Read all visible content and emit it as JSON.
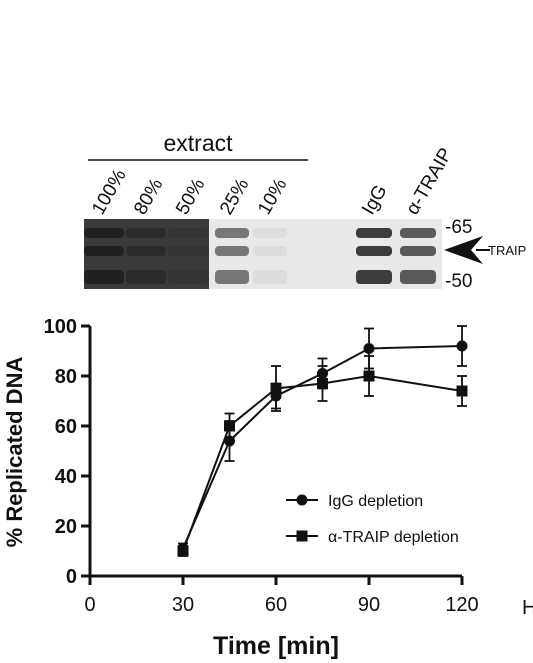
{
  "panel_label": "",
  "blot": {
    "extract_label": "extract",
    "lanes": [
      "100%",
      "80%",
      "50%",
      "25%",
      "10%",
      "IgG",
      "α-TRAIP"
    ],
    "marker_top": "-65",
    "marker_bottom": "-50",
    "band_label": "TRAIP",
    "lane_intensity": [
      0.95,
      0.9,
      0.85,
      0.6,
      0.08,
      0.9,
      0.75
    ]
  },
  "chart_data": {
    "type": "line",
    "title": "",
    "xlabel": "Time [min]",
    "ylabel": "% Replicated DNA",
    "xlim": [
      0,
      120
    ],
    "ylim": [
      0,
      100
    ],
    "xticks": [
      0,
      30,
      60,
      90,
      120
    ],
    "yticks": [
      0,
      20,
      40,
      60,
      80,
      100
    ],
    "grid": false,
    "legend_position": "bottom-right",
    "series": [
      {
        "name": "IgG depletion",
        "marker": "circle",
        "x": [
          30,
          45,
          60,
          75,
          90,
          120
        ],
        "y": [
          11,
          54,
          72,
          81,
          91,
          92
        ],
        "err": [
          2,
          8,
          5,
          6,
          8,
          8
        ]
      },
      {
        "name": "α-TRAIP depletion",
        "marker": "square",
        "x": [
          30,
          45,
          60,
          75,
          90,
          120
        ],
        "y": [
          10,
          60,
          75,
          77,
          80,
          74
        ],
        "err": [
          2,
          5,
          9,
          7,
          8,
          6
        ]
      }
    ],
    "x_edge_text": "H"
  }
}
